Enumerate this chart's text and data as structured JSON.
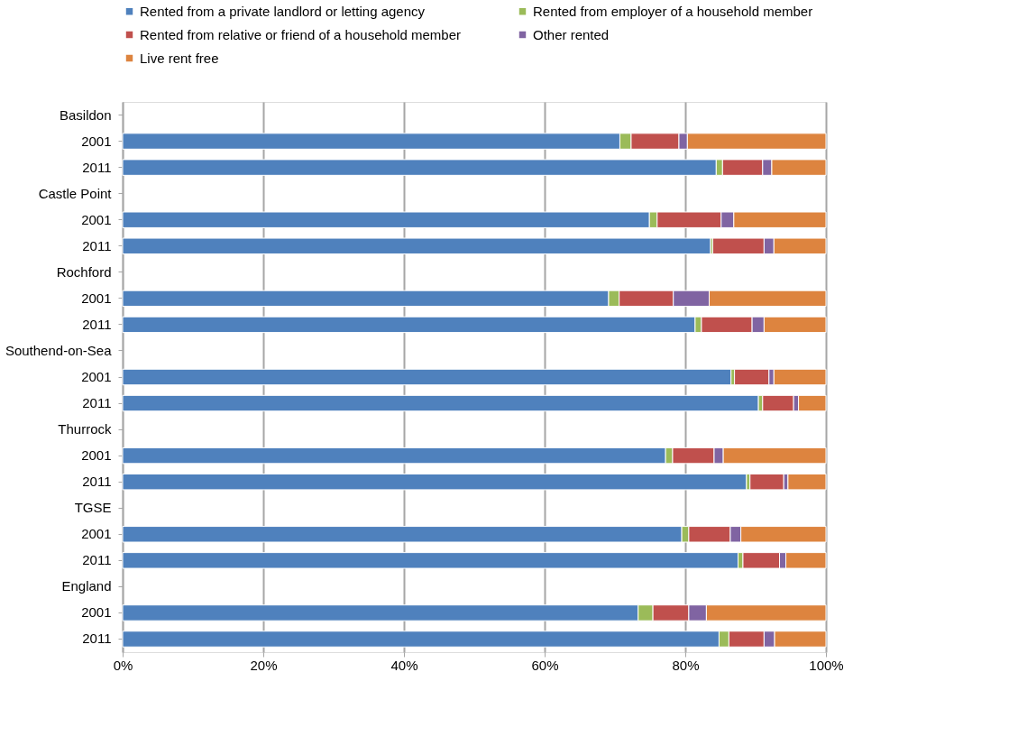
{
  "chart_data": {
    "type": "bar",
    "orientation": "horizontal",
    "stacked": true,
    "categories": [
      "Basildon",
      "2001",
      "2011",
      "Castle Point",
      "2001",
      "2011",
      "Rochford",
      "2001",
      "2011",
      "Southend-on-Sea",
      "2001",
      "2011",
      "Thurrock",
      "2001",
      "2011",
      "TGSE",
      "2001",
      "2011",
      "England",
      "2001",
      "2011"
    ],
    "series": [
      {
        "name": "Rented from a private landlord or letting agency",
        "color": "#4f81bd",
        "values": [
          null,
          70.7,
          84.4,
          null,
          74.9,
          83.6,
          null,
          69.1,
          81.4,
          null,
          86.5,
          90.4,
          null,
          77.2,
          88.7,
          null,
          79.5,
          87.5,
          null,
          73.3,
          84.8
        ]
      },
      {
        "name": "Rented from employer of a household member",
        "color": "#9bbb59",
        "values": [
          null,
          1.6,
          0.9,
          null,
          1.1,
          0.3,
          null,
          1.5,
          0.9,
          null,
          0.5,
          0.6,
          null,
          1.0,
          0.5,
          null,
          1.0,
          0.7,
          null,
          2.1,
          1.4
        ]
      },
      {
        "name": "Rented from relative or friend of a household member",
        "color": "#c0504d",
        "values": [
          null,
          6.8,
          5.7,
          null,
          9.1,
          7.3,
          null,
          7.7,
          7.2,
          null,
          4.9,
          4.4,
          null,
          5.9,
          4.8,
          null,
          5.9,
          5.2,
          null,
          5.1,
          5.0
        ]
      },
      {
        "name": "Other rented",
        "color": "#8064a2",
        "values": [
          null,
          1.2,
          1.3,
          null,
          1.8,
          1.4,
          null,
          5.1,
          1.7,
          null,
          0.7,
          0.7,
          null,
          1.3,
          0.6,
          null,
          1.5,
          0.9,
          null,
          2.5,
          1.5
        ]
      },
      {
        "name": "Live rent free",
        "color": "#dd843f",
        "values": [
          null,
          19.7,
          7.7,
          null,
          13.1,
          7.4,
          null,
          16.6,
          8.8,
          null,
          7.4,
          3.9,
          null,
          14.6,
          5.4,
          null,
          12.1,
          5.7,
          null,
          17.0,
          7.3
        ]
      }
    ],
    "xlim": [
      0,
      100
    ],
    "xticks": [
      {
        "value": 0,
        "label": "0%"
      },
      {
        "value": 20,
        "label": "20%"
      },
      {
        "value": 40,
        "label": "40%"
      },
      {
        "value": 60,
        "label": "60%"
      },
      {
        "value": 80,
        "label": "80%"
      },
      {
        "value": 100,
        "label": "100%"
      }
    ],
    "grid": "x",
    "legend": "top"
  }
}
